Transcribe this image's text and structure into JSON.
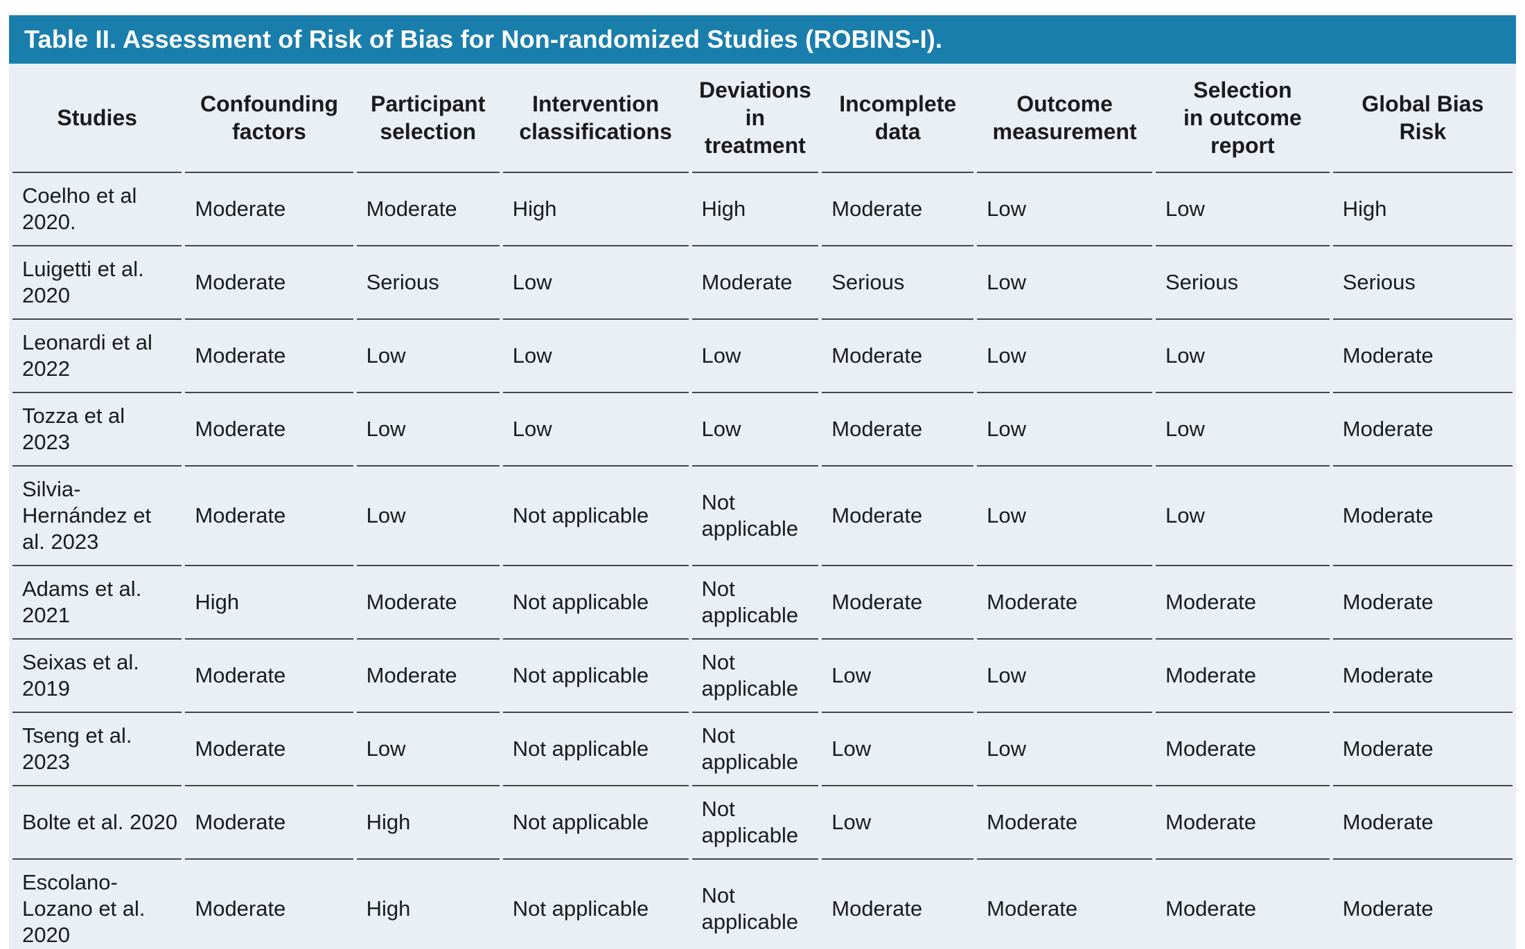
{
  "title": "Table II. Assessment of Risk of Bias for Non-randomized Studies (ROBINS-I).",
  "colors": {
    "title_bar": "#1A7EAC",
    "table_bg": "#EAEFF6",
    "divider": "#454545",
    "title_text": "#FFFFFF",
    "body_text": "#1B1B1D"
  },
  "table": {
    "columns": [
      "Studies",
      "Confounding\nfactors",
      "Participant\nselection",
      "Intervention\nclassifications",
      "Deviations\nin\ntreatment",
      "Incomplete\ndata",
      "Outcome\nmeasurement",
      "Selection\nin outcome\nreport",
      "Global Bias\nRisk"
    ],
    "rows": [
      {
        "study": "Coelho et al 2020.",
        "values": [
          "Moderate",
          "Moderate",
          "High",
          "High",
          "Moderate",
          "Low",
          "Low",
          "High"
        ]
      },
      {
        "study": "Luigetti et al. 2020",
        "values": [
          "Moderate",
          "Serious",
          "Low",
          "Moderate",
          "Serious",
          "Low",
          "Serious",
          "Serious"
        ]
      },
      {
        "study": "Leonardi et al 2022",
        "values": [
          "Moderate",
          "Low",
          "Low",
          "Low",
          "Moderate",
          "Low",
          "Low",
          "Moderate"
        ]
      },
      {
        "study": "Tozza et al 2023",
        "values": [
          "Moderate",
          "Low",
          "Low",
          "Low",
          "Moderate",
          "Low",
          "Low",
          "Moderate"
        ]
      },
      {
        "study": "Silvia-Hernández et al. 2023",
        "values": [
          "Moderate",
          "Low",
          "Not applicable",
          "Not applicable",
          "Moderate",
          "Low",
          "Low",
          "Moderate"
        ]
      },
      {
        "study": "Adams et al. 2021",
        "values": [
          "High",
          "Moderate",
          "Not applicable",
          "Not applicable",
          "Moderate",
          "Moderate",
          "Moderate",
          "Moderate"
        ]
      },
      {
        "study": "Seixas et al. 2019",
        "values": [
          "Moderate",
          "Moderate",
          "Not applicable",
          "Not applicable",
          "Low",
          "Low",
          "Moderate",
          "Moderate"
        ]
      },
      {
        "study": "Tseng et al. 2023",
        "values": [
          "Moderate",
          "Low",
          "Not applicable",
          "Not applicable",
          "Low",
          "Low",
          "Moderate",
          "Moderate"
        ]
      },
      {
        "study": "Bolte et al. 2020",
        "values": [
          "Moderate",
          "High",
          "Not applicable",
          "Not applicable",
          "Low",
          "Moderate",
          "Moderate",
          "Moderate"
        ]
      },
      {
        "study": "Escolano-Lozano et al. 2020",
        "values": [
          "Moderate",
          "High",
          "Not applicable",
          "Not applicable",
          "Moderate",
          "Moderate",
          "Moderate",
          "Moderate"
        ]
      }
    ]
  }
}
